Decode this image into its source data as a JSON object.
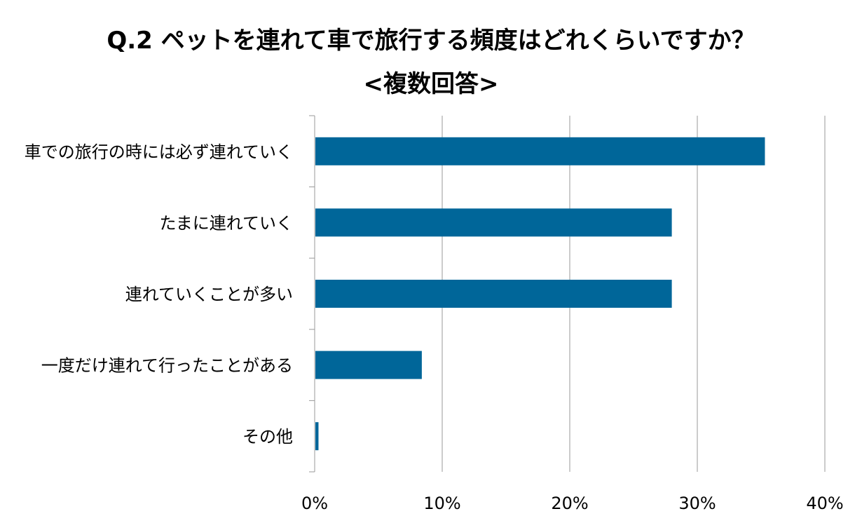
{
  "chart_data": {
    "type": "bar",
    "orientation": "horizontal",
    "title": "Q.2 ペットを連れて車で旅行する頻度はどれくらいですか？",
    "subtitle": "<複数回答>",
    "categories": [
      "車での旅行の時には必ず連れていく",
      "たまに連れていく",
      "連れていくことが多い",
      "一度だけ連れて行ったことがある",
      "その他"
    ],
    "values": [
      35.3,
      28.0,
      28.0,
      8.4,
      0.3
    ],
    "xlim": [
      0,
      40
    ],
    "xticks": [
      0,
      10,
      20,
      30,
      40
    ],
    "xtick_labels": [
      "0%",
      "10%",
      "20%",
      "30%",
      "40%"
    ],
    "xlabel": "",
    "ylabel": "",
    "grid": true,
    "legend": "none",
    "bar_color": "#006699",
    "grid_color": "#999999"
  }
}
